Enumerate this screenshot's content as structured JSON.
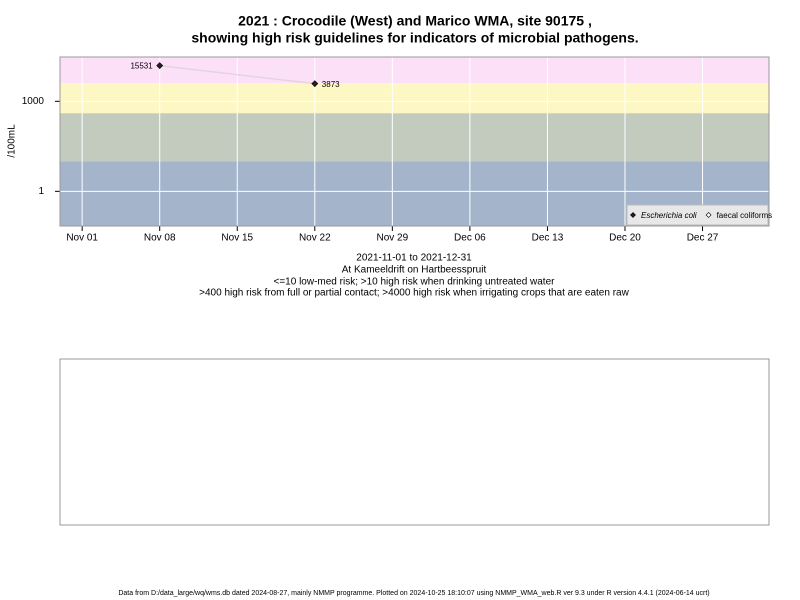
{
  "chart_data": {
    "type": "line",
    "title": [
      "2021 : Crocodile (West) and Marico WMA, site 90175 ,",
      "showing high risk guidelines for indicators of microbial pathogens."
    ],
    "y_label": "/100mL",
    "subtitle": [
      "2021-11-01 to 2021-12-31",
      "At Kameeldrift on Hartbeesspruit",
      "<=10 low-med risk; >10 high risk when drinking untreated water",
      ">400 high risk from full or partial contact; >4000 high risk when irrigating crops that are eaten raw"
    ],
    "log_y": true,
    "grid": true,
    "legend": "bottom-right",
    "ylim": [
      0.07,
      30000
    ],
    "yticks": [
      {
        "value": 1,
        "label": "1"
      },
      {
        "value": 1000,
        "label": "1000"
      }
    ],
    "xlim": [
      "2021-10-30",
      "2022-01-02"
    ],
    "xticks": [
      {
        "value": "2021-11-01",
        "label": "Nov 01"
      },
      {
        "value": "2021-11-08",
        "label": "Nov 08"
      },
      {
        "value": "2021-11-15",
        "label": "Nov 15"
      },
      {
        "value": "2021-11-22",
        "label": "Nov 22"
      },
      {
        "value": "2021-11-29",
        "label": "Nov 29"
      },
      {
        "value": "2021-12-06",
        "label": "Dec 06"
      },
      {
        "value": "2021-12-13",
        "label": "Dec 13"
      },
      {
        "value": "2021-12-20",
        "label": "Dec 20"
      },
      {
        "value": "2021-12-27",
        "label": "Dec 27"
      }
    ],
    "bands": [
      {
        "from": 4000,
        "color": "#fbe0f8"
      },
      {
        "from": 400,
        "to": 4000,
        "color": "#fdf7c3"
      },
      {
        "from": 10,
        "to": 400,
        "color": "#c3cbbf"
      },
      {
        "to": 10,
        "color": "#a3b4cb"
      }
    ],
    "series": [
      {
        "name": "Escherichia coli",
        "color": "#222222",
        "line_color": "#e4d4e0",
        "x": [
          "2021-11-08",
          "2021-11-22"
        ],
        "values": [
          15531,
          3873
        ]
      },
      {
        "name": "faecal coliforms",
        "color": "#ffffff",
        "x": [],
        "values": []
      }
    ],
    "footer": "Data from D:/data_large/wq/wms.db dated 2024-08-27, mainly NMMP programme. Plotted on 2024-10-25 18:10:07 using NMMP_WMA_web.R ver 9.3 under R version 4.4.1 (2024-06-14 ucrt)"
  }
}
